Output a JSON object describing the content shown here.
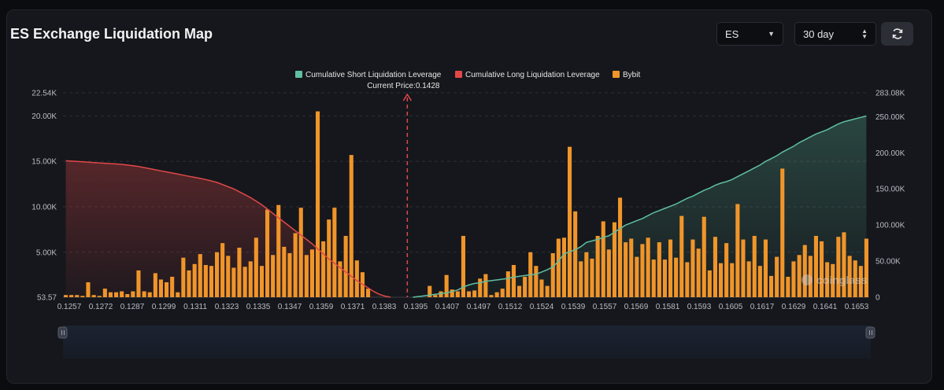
{
  "header": {
    "title": "ES Exchange Liquidation Map",
    "symbol_select": "ES",
    "period_select": "30 day"
  },
  "colors": {
    "short": "#5fbfa0",
    "long": "#e04848",
    "bybit": "#f0952a",
    "current_price": "#e04848"
  },
  "icons": [
    "refresh-icon",
    "chevron-down-icon",
    "updown-icon"
  ],
  "chart_data": {
    "type": "bar",
    "legend": [
      "Cumulative Short Liquidation Leverage",
      "Cumulative Long Liquidation Leverage",
      "Bybit"
    ],
    "legend_position": "top-center",
    "current_price_label": "Current Price:0.1428",
    "current_price_index": 61,
    "watermark": "coinglass",
    "x_tick_labels": [
      "0.1257",
      "0.1272",
      "0.1287",
      "0.1299",
      "0.1311",
      "0.1323",
      "0.1335",
      "0.1347",
      "0.1359",
      "0.1371",
      "0.1383",
      "0.1395",
      "0.1407",
      "0.1497",
      "0.1512",
      "0.1524",
      "0.1539",
      "0.1557",
      "0.1569",
      "0.1581",
      "0.1593",
      "0.1605",
      "0.1617",
      "0.1629",
      "0.1641",
      "0.1653"
    ],
    "y_left_ticks": [
      "53.57",
      "5.00K",
      "10.00K",
      "15.00K",
      "20.00K",
      "22.54K"
    ],
    "y_left_values": [
      53.57,
      5000,
      10000,
      15000,
      20000,
      22540
    ],
    "y_left_range": [
      53.57,
      22540
    ],
    "y_right_ticks": [
      "0",
      "50.00K",
      "100.00K",
      "150.00K",
      "200.00K",
      "250.00K",
      "283.08K"
    ],
    "y_right_values": [
      0,
      50000,
      100000,
      150000,
      200000,
      250000,
      283080
    ],
    "y_right_range": [
      0,
      283080
    ],
    "grid": true,
    "bybit_values": [
      300,
      300,
      300,
      200,
      1700,
      300,
      200,
      1000,
      600,
      600,
      700,
      400,
      700,
      3000,
      700,
      600,
      2700,
      2000,
      1700,
      2300,
      600,
      4400,
      3000,
      3700,
      4800,
      3600,
      3500,
      5000,
      6000,
      4600,
      3300,
      5500,
      3400,
      4000,
      6600,
      3500,
      9700,
      4700,
      10200,
      5600,
      4900,
      7100,
      9900,
      4700,
      5300,
      20500,
      6200,
      8600,
      9900,
      4000,
      6800,
      15700,
      4100,
      2800,
      1000,
      0,
      0,
      0,
      0,
      0,
      0,
      0,
      0,
      0,
      0,
      1300,
      300,
      700,
      2500,
      900,
      700,
      6800,
      700,
      800,
      2100,
      2600,
      300,
      600,
      1000,
      2900,
      3600,
      1300,
      2300,
      5000,
      3500,
      2000,
      1300,
      4900,
      6500,
      6600,
      16600,
      9500,
      4000,
      5000,
      4300,
      6800,
      8400,
      5300,
      8300,
      11000,
      6100,
      6500,
      4500,
      5900,
      6600,
      4200,
      6100,
      4200,
      6400,
      4400,
      9000,
      3900,
      6400,
      5400,
      8900,
      3000,
      6700,
      3800,
      6000,
      3800,
      10300,
      6400,
      4000,
      6800,
      3500,
      6400,
      2400,
      4500,
      14200,
      2300,
      4000,
      4700,
      5800,
      4600,
      6800,
      6200,
      3900,
      3700,
      6700,
      7200,
      4600,
      4100,
      3500,
      6500
    ],
    "short_cumulative": [
      0,
      0,
      0,
      0,
      0,
      0,
      0,
      0,
      0,
      0,
      0,
      0,
      0,
      0,
      0,
      0,
      0,
      0,
      0,
      0,
      0,
      0,
      0,
      0,
      0,
      0,
      0,
      0,
      0,
      0,
      0,
      0,
      0,
      0,
      0,
      0,
      0,
      0,
      0,
      0,
      0,
      0,
      0,
      0,
      0,
      0,
      0,
      0,
      0,
      0,
      0,
      0,
      0,
      0,
      0,
      0,
      0,
      0,
      0,
      0,
      0,
      0,
      0,
      1000,
      2000,
      3000,
      4000,
      5000,
      6000,
      8000,
      10000,
      14000,
      17000,
      19000,
      20000,
      22000,
      23000,
      24000,
      25000,
      26000,
      28000,
      29000,
      30000,
      31000,
      32000,
      35000,
      38000,
      42000,
      50000,
      60000,
      63000,
      66000,
      70000,
      76000,
      78000,
      80000,
      83000,
      85000,
      90000,
      95000,
      100000,
      103000,
      106000,
      109000,
      113000,
      117000,
      120000,
      123000,
      126000,
      129000,
      133000,
      137000,
      140000,
      144000,
      148000,
      151000,
      155000,
      158000,
      160000,
      163000,
      167000,
      171000,
      175000,
      179000,
      183000,
      188000,
      192000,
      196000,
      201000,
      205000,
      209000,
      214000,
      218000,
      222000,
      226000,
      229000,
      232000,
      236000,
      240000,
      243000,
      245000,
      247000,
      249000,
      251000,
      253000,
      255000,
      256000,
      258000
    ],
    "long_cumulative": [
      189000,
      188500,
      188000,
      187500,
      187000,
      186500,
      186000,
      185500,
      185000,
      184500,
      184000,
      183000,
      182000,
      181000,
      179500,
      178000,
      176500,
      175000,
      173500,
      172000,
      170500,
      169000,
      167500,
      166000,
      164500,
      163000,
      161000,
      159000,
      156000,
      153000,
      150000,
      146000,
      142000,
      138000,
      133000,
      128000,
      122000,
      116000,
      110000,
      104000,
      98000,
      92000,
      86000,
      80000,
      74000,
      67000,
      60000,
      53000,
      47000,
      41000,
      35000,
      29000,
      23000,
      18000,
      13000,
      8000,
      4000,
      1500,
      0,
      0,
      0,
      0,
      0,
      0,
      0,
      0,
      0,
      0,
      0,
      0,
      0,
      0,
      0,
      0,
      0,
      0,
      0,
      0,
      0,
      0,
      0,
      0,
      0,
      0,
      0,
      0,
      0,
      0,
      0,
      0,
      0,
      0,
      0,
      0,
      0,
      0,
      0,
      0,
      0,
      0,
      0,
      0,
      0,
      0,
      0,
      0,
      0,
      0,
      0,
      0,
      0,
      0,
      0,
      0,
      0,
      0,
      0,
      0,
      0,
      0,
      0,
      0,
      0,
      0,
      0,
      0,
      0,
      0,
      0,
      0,
      0,
      0,
      0,
      0,
      0,
      0,
      0,
      0,
      0,
      0,
      0,
      0,
      0,
      0,
      0,
      0,
      0,
      0
    ]
  }
}
